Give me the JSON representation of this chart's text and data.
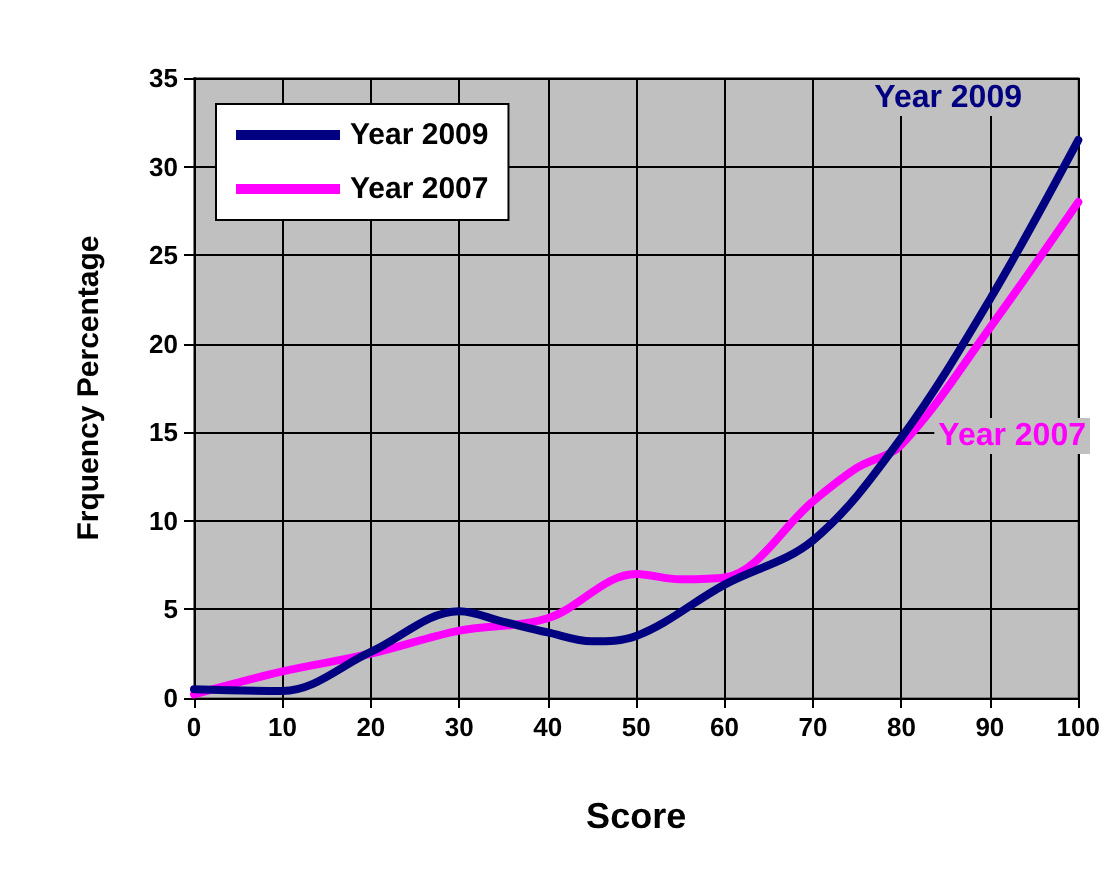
{
  "chart_data": {
    "type": "line",
    "xlabel": "Score",
    "ylabel": "Frquency Percentage",
    "series": [
      {
        "name": "Year 2009",
        "color": "#000080",
        "x": [
          0,
          10,
          20,
          30,
          35,
          40,
          45,
          50,
          60,
          70,
          80,
          90,
          100
        ],
        "values": [
          0.5,
          0.4,
          2.6,
          4.9,
          4.3,
          3.7,
          3.2,
          3.5,
          6.4,
          8.9,
          14.7,
          22.5,
          31.5
        ]
      },
      {
        "name": "Year 2007",
        "color": "#ff00ff",
        "x": [
          0,
          10,
          20,
          30,
          40,
          50,
          55,
          60,
          70,
          75,
          80,
          90,
          100
        ],
        "values": [
          0.2,
          1.5,
          2.5,
          3.8,
          4.5,
          7.0,
          6.7,
          6.8,
          11.1,
          13.0,
          14.3,
          20.9,
          28.0
        ]
      }
    ],
    "xlim": [
      0,
      100
    ],
    "xticks": [
      0,
      10,
      20,
      30,
      40,
      50,
      60,
      70,
      80,
      90,
      100
    ],
    "ylim": [
      0,
      35
    ],
    "yticks": [
      0,
      5,
      10,
      15,
      20,
      25,
      30,
      35
    ],
    "grid": true,
    "legend": "top left",
    "marker": "none",
    "line_style": "solid"
  }
}
